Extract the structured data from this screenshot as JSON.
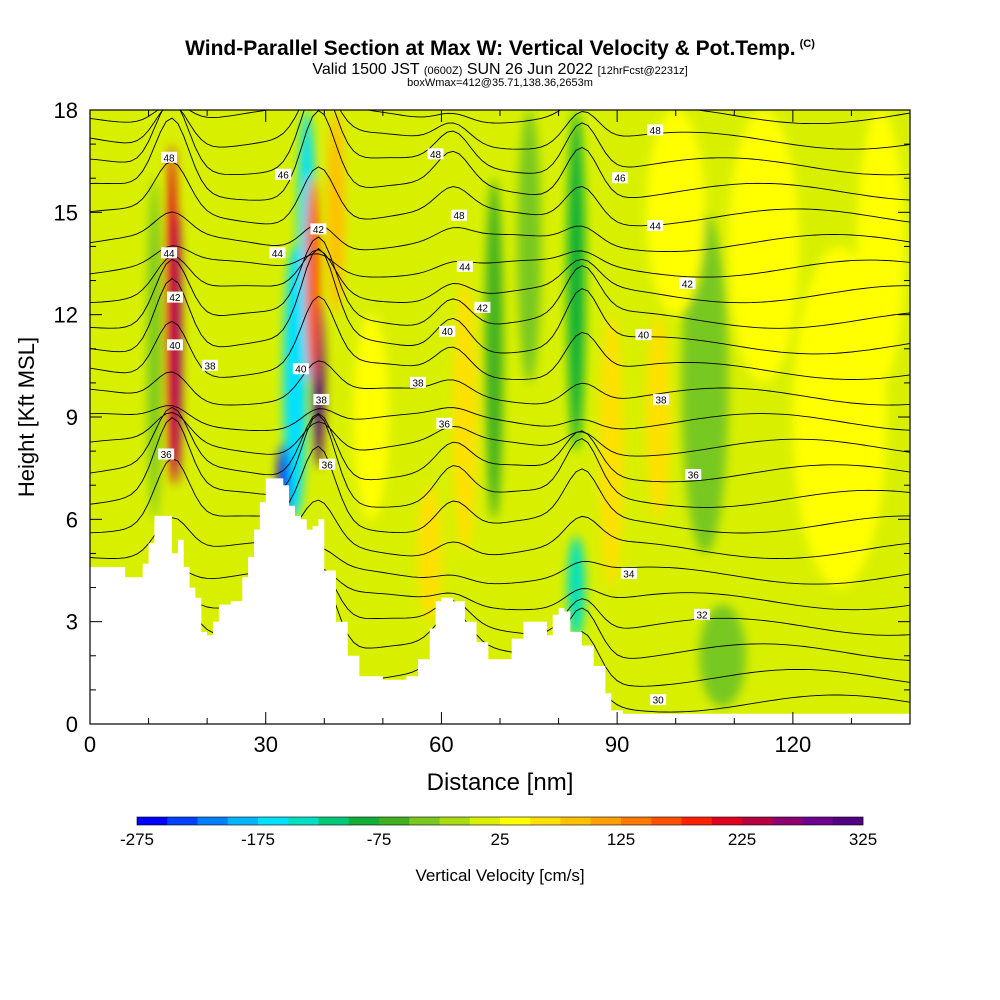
{
  "chart_data": {
    "type": "heatmap",
    "title": "Wind-Parallel Section at Max W: Vertical Velocity & Pot.Temp.",
    "title_mark": "(C)",
    "subtitle_valid": "Valid 1500 JST",
    "subtitle_utc": "(0600Z)",
    "subtitle_date": "SUN 26 Jun 2022",
    "subtitle_fcst": "[12hrFcst@2231z]",
    "subtitle_box": "boxWmax=412@35.71,138.36,2653m",
    "xlabel": "Distance [nm]",
    "ylabel": "Height [Kft MSL]",
    "xlim": [
      0,
      140
    ],
    "ylim": [
      0,
      18
    ],
    "xticks": [
      0,
      30,
      60,
      90,
      120
    ],
    "yticks": [
      0,
      3,
      6,
      9,
      12,
      15,
      18
    ],
    "colorbar": {
      "label": "Vertical Velocity [cm/s]",
      "min": -275,
      "max": 325,
      "tick_labels": [
        "-275",
        "-175",
        "-75",
        "25",
        "125",
        "225",
        "325"
      ],
      "colors": [
        "#0000ff",
        "#0040ff",
        "#0080ff",
        "#00b4ff",
        "#00e0ff",
        "#00e0c0",
        "#00c878",
        "#10b038",
        "#40b020",
        "#78c820",
        "#a8dc10",
        "#d8f000",
        "#ffff00",
        "#ffe000",
        "#ffc000",
        "#ffa000",
        "#ff7800",
        "#ff5000",
        "#ff2000",
        "#e00020",
        "#b40040",
        "#8c0070",
        "#6e0090",
        "#500080"
      ]
    },
    "terrain": [
      [
        0,
        4.6
      ],
      [
        5,
        4.6
      ],
      [
        6,
        4.3
      ],
      [
        8,
        4.3
      ],
      [
        9,
        4.7
      ],
      [
        10,
        5.3
      ],
      [
        11,
        6.1
      ],
      [
        13,
        6.1
      ],
      [
        14,
        5.0
      ],
      [
        15,
        5.4
      ],
      [
        16,
        4.6
      ],
      [
        17,
        4.0
      ],
      [
        18,
        3.7
      ],
      [
        19,
        2.7
      ],
      [
        20,
        2.6
      ],
      [
        21,
        3.0
      ],
      [
        22,
        3.5
      ],
      [
        24,
        3.6
      ],
      [
        26,
        4.3
      ],
      [
        27,
        4.9
      ],
      [
        28,
        5.7
      ],
      [
        29,
        6.5
      ],
      [
        30,
        7.2
      ],
      [
        32,
        7.2
      ],
      [
        33,
        7.0
      ],
      [
        34,
        6.4
      ],
      [
        35,
        6.1
      ],
      [
        36,
        6.0
      ],
      [
        37,
        5.7
      ],
      [
        38,
        5.8
      ],
      [
        39,
        6.0
      ],
      [
        40,
        4.5
      ],
      [
        42,
        3.0
      ],
      [
        44,
        2.0
      ],
      [
        46,
        1.4
      ],
      [
        50,
        1.3
      ],
      [
        54,
        1.4
      ],
      [
        56,
        1.9
      ],
      [
        58,
        2.8
      ],
      [
        59,
        3.6
      ],
      [
        60,
        3.7
      ],
      [
        62,
        3.6
      ],
      [
        64,
        3.0
      ],
      [
        66,
        2.4
      ],
      [
        68,
        1.9
      ],
      [
        70,
        1.9
      ],
      [
        72,
        2.5
      ],
      [
        74,
        3.0
      ],
      [
        76,
        3.0
      ],
      [
        78,
        2.6
      ],
      [
        79,
        3.2
      ],
      [
        80,
        3.4
      ],
      [
        81,
        3.3
      ],
      [
        82,
        2.7
      ],
      [
        84,
        2.3
      ],
      [
        86,
        1.7
      ],
      [
        88,
        0.9
      ],
      [
        89,
        0.4
      ],
      [
        91,
        0.3
      ],
      [
        140,
        0.3
      ]
    ],
    "w_field": [
      {
        "x": 14,
        "y": 12,
        "rx": 1.0,
        "ry": 5,
        "w": 200
      },
      {
        "x": 15,
        "y": 11,
        "rx": 0.6,
        "ry": 4,
        "w": 260
      },
      {
        "x": 11,
        "y": 11,
        "rx": 1.2,
        "ry": 5,
        "w": -30
      },
      {
        "x": 35,
        "y": 10,
        "rx": 2.0,
        "ry": 4,
        "w": -175
      },
      {
        "x": 37,
        "y": 14,
        "rx": 1.6,
        "ry": 4,
        "w": -175
      },
      {
        "x": 39,
        "y": 10,
        "rx": 1.0,
        "ry": 2.5,
        "w": 320
      },
      {
        "x": 38,
        "y": 13,
        "rx": 1.2,
        "ry": 3,
        "w": 160
      },
      {
        "x": 42,
        "y": 15,
        "rx": 1.5,
        "ry": 3,
        "w": 90
      },
      {
        "x": 33,
        "y": 7,
        "rx": 1.0,
        "ry": 1.2,
        "w": -275
      },
      {
        "x": 48,
        "y": 9,
        "rx": 3.0,
        "ry": 3,
        "w": 40
      },
      {
        "x": 58,
        "y": 5,
        "rx": 2.0,
        "ry": 2,
        "w": 60
      },
      {
        "x": 64,
        "y": 9,
        "rx": 2.0,
        "ry": 4,
        "w": 60
      },
      {
        "x": 69,
        "y": 11,
        "rx": 1.5,
        "ry": 5,
        "w": -60
      },
      {
        "x": 75,
        "y": 14,
        "rx": 2.0,
        "ry": 4,
        "w": -50
      },
      {
        "x": 83,
        "y": 13,
        "rx": 1.5,
        "ry": 5,
        "w": -80
      },
      {
        "x": 83,
        "y": 4,
        "rx": 1.5,
        "ry": 1.5,
        "w": -140
      },
      {
        "x": 89,
        "y": 8,
        "rx": 2.0,
        "ry": 4,
        "w": 60
      },
      {
        "x": 97,
        "y": 9,
        "rx": 2.0,
        "ry": 3,
        "w": 50
      },
      {
        "x": 105,
        "y": 10,
        "rx": 4.0,
        "ry": 5,
        "w": -40
      },
      {
        "x": 100,
        "y": 15,
        "rx": 5.0,
        "ry": 3,
        "w": 40
      },
      {
        "x": 115,
        "y": 14,
        "rx": 6.0,
        "ry": 4,
        "w": 40
      },
      {
        "x": 128,
        "y": 9,
        "rx": 8.0,
        "ry": 5,
        "w": 40
      },
      {
        "x": 108,
        "y": 2,
        "rx": 4.0,
        "ry": 1.5,
        "w": -40
      },
      {
        "x": 135,
        "y": 14,
        "rx": 4.0,
        "ry": 4,
        "w": 30
      }
    ],
    "theta_labels": [
      {
        "label": "48",
        "x": 13.5,
        "y": 16.6
      },
      {
        "label": "46",
        "x": 33,
        "y": 16.1
      },
      {
        "label": "44",
        "x": 13.5,
        "y": 13.8
      },
      {
        "label": "44",
        "x": 32,
        "y": 13.8
      },
      {
        "label": "42",
        "x": 14.5,
        "y": 12.5
      },
      {
        "label": "42",
        "x": 39,
        "y": 14.5
      },
      {
        "label": "40",
        "x": 14.5,
        "y": 11.1
      },
      {
        "label": "40",
        "x": 36,
        "y": 10.4
      },
      {
        "label": "38",
        "x": 20.5,
        "y": 10.5
      },
      {
        "label": "38",
        "x": 39.5,
        "y": 9.5
      },
      {
        "label": "36",
        "x": 13,
        "y": 7.9
      },
      {
        "label": "36",
        "x": 40.5,
        "y": 7.6
      },
      {
        "label": "48",
        "x": 59,
        "y": 16.7
      },
      {
        "label": "48",
        "x": 63,
        "y": 14.9
      },
      {
        "label": "44",
        "x": 64,
        "y": 13.4
      },
      {
        "label": "42",
        "x": 67,
        "y": 12.2
      },
      {
        "label": "40",
        "x": 61,
        "y": 11.5
      },
      {
        "label": "38",
        "x": 56,
        "y": 10.0
      },
      {
        "label": "36",
        "x": 60.5,
        "y": 8.8
      },
      {
        "label": "48",
        "x": 96.5,
        "y": 17.4
      },
      {
        "label": "46",
        "x": 90.5,
        "y": 16.0
      },
      {
        "label": "44",
        "x": 96.5,
        "y": 14.6
      },
      {
        "label": "42",
        "x": 102,
        "y": 12.9
      },
      {
        "label": "40",
        "x": 94.5,
        "y": 11.4
      },
      {
        "label": "38",
        "x": 97.5,
        "y": 9.5
      },
      {
        "label": "36",
        "x": 103,
        "y": 7.3
      },
      {
        "label": "34",
        "x": 92,
        "y": 4.4
      },
      {
        "label": "32",
        "x": 104.5,
        "y": 3.2
      },
      {
        "label": "30",
        "x": 97,
        "y": 0.7
      }
    ]
  }
}
